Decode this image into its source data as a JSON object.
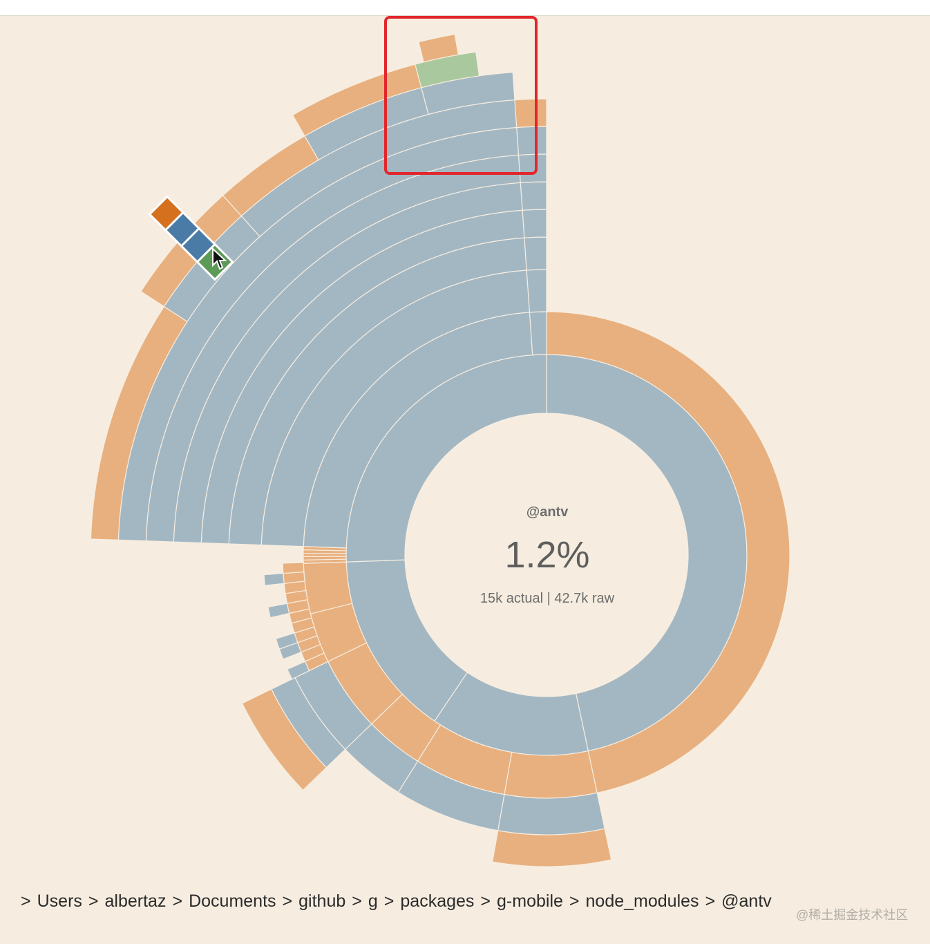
{
  "colors": {
    "background": "#f6ede0",
    "directory": "#a3b7c3",
    "file": "#e8b07e",
    "highlight_file": "#d4701e",
    "highlight_dir": "#4a7ba6",
    "highlight_js": "#5c9a58",
    "light_green": "#aac89e",
    "selection_box": "#e2262b"
  },
  "center": {
    "name": "@antv",
    "percent": "1.2%",
    "size_label": "15k actual | 42.7k raw"
  },
  "breadcrumb": [
    "Users",
    "albertaz",
    "Documents",
    "github",
    "g",
    "packages",
    "g-mobile",
    "node_modules",
    "@antv"
  ],
  "breadcrumb_separator": ">",
  "watermark": "@稀土掘金技术社区",
  "chart_data": {
    "type": "sunburst",
    "root": "@antv",
    "root_share_percent": 1.2,
    "actual_size": "15k",
    "raw_size": "42.7k",
    "direction": "clockwise from 12 o'clock",
    "children": [
      {
        "kind": "dir",
        "share": 0.64,
        "depth": 2,
        "children": [
          {
            "kind": "file",
            "share": 0.64,
            "depth": 3
          }
        ]
      },
      {
        "kind": "dir",
        "share": 0.058,
        "depth": 2,
        "children": [
          {
            "kind": "file",
            "share": 0.058,
            "depth": 3
          }
        ]
      },
      {
        "kind": "dir",
        "share": 0.057,
        "depth": 4,
        "children": [
          {
            "kind": "file",
            "share": 0.057,
            "depth": 5
          }
        ]
      },
      {
        "kind": "dir",
        "share": 0.08,
        "depth": 5,
        "note": "many small files"
      },
      {
        "kind": "dir",
        "share": 0.245,
        "depth": 10,
        "note": "deep nested folders"
      }
    ],
    "hovered_path_legend": [
      "file",
      "dir",
      "dir",
      "js-file"
    ]
  }
}
